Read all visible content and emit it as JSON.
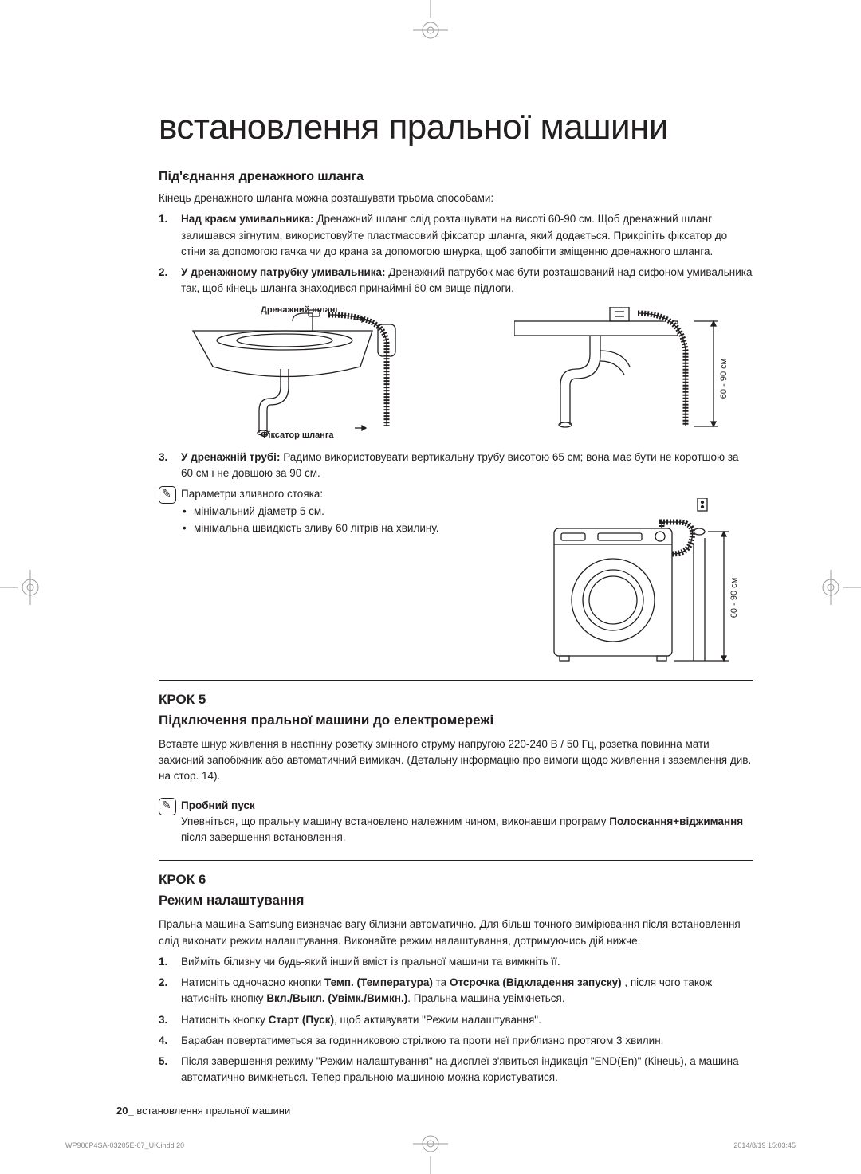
{
  "title": "встановлення пральної машини",
  "section1": {
    "heading": "Під'єднання дренажного шланга",
    "intro": "Кінець дренажного шланга можна розташувати трьома способами:",
    "items": [
      {
        "label": "Над краєм умивальника:",
        "text": " Дренажний шланг слід розташувати на висоті 60-90 см. Щоб дренажний шланг залишався зігнутим, використовуйте пластмасовий фіксатор шланга, який додається. Прикріпіть фіксатор до стіни за допомогою гачка чи до крана за допомогою шнурка, щоб запобігти зміщенню дренажного шланга."
      },
      {
        "label": "У дренажному патрубку умивальника:",
        "text": " Дренажний патрубок має бути розташований над сифоном умивальника так, щоб кінець шланга знаходився принаймні 60 см вище підлоги."
      },
      {
        "label": "У дренажній трубі:",
        "text": " Радимо використовувати вертикальну трубу висотою 65 см; вона має бути не коротшою за 60 см і не довшою за 90 см."
      }
    ],
    "diagram_labels": {
      "hose": "Дренажний шланг",
      "guide": "Фіксатор шланга",
      "height": "60 - 90 см"
    },
    "note_intro": "Параметри зливного стояка:",
    "note_bullets": [
      "мінімальний діаметр 5 см.",
      "мінімальна швидкість зливу 60 літрів на хвилину."
    ]
  },
  "step5": {
    "label": "КРОК 5",
    "heading": "Підключення пральної машини до електромережі",
    "text": "Вставте шнур живлення в настінну розетку змінного струму напругою 220-240 В / 50 Гц, розетка повинна мати захисний запобіжник або автоматичний вимикач. (Детальну інформацію про вимоги щодо живлення і заземлення див. на стор. 14).",
    "note_title": "Пробний пуск",
    "note_text_a": "Упевніться, що пральну машину встановлено належним чином, виконавши програму ",
    "note_bold": "Полоскання+віджимання",
    "note_text_b": " після завершення встановлення."
  },
  "step6": {
    "label": "КРОК 6",
    "heading": "Режим налаштування",
    "intro": "Пральна машина Samsung визначає вагу білизни автоматично. Для більш точного вимірювання після встановлення слід виконати режим налаштування. Виконайте режим налаштування, дотримуючись дій нижче.",
    "items": [
      "Вийміть білизну чи будь-який інший вміст із пральної машини та вимкніть її.",
      "Натисніть одночасно кнопки <b>Темп. (Температура)</b> та <b>Отсрочка (Відкладення запуску)</b> , після чого також натисніть кнопку <b>Вкл./Выкл. (Увімк./Вимкн.)</b>. Пральна машина увімкнеться.",
      "Натисніть кнопку <b>Старт (Пуск)</b>, щоб активувати \"Режим налаштування\".",
      "Барабан повертатиметься за годинниковою стрілкою та проти неї приблизно протягом 3 хвилин.",
      "Після завершення режиму \"Режим налаштування\" на дисплеї з'явиться індикація \"END(En)\" (Кінець), а машина автоматично вимкнеться. Тепер пральною машиною можна користуватися."
    ]
  },
  "footer": {
    "page": "20_",
    "label": " встановлення пральної машини"
  },
  "print": {
    "file": "WP906P4SA-03205E-07_UK.indd   20",
    "time": "2014/8/19   15:03:45"
  },
  "colors": {
    "text": "#231f20",
    "bg": "#ffffff",
    "meta": "#888888",
    "mark": "#9a9a9a"
  }
}
